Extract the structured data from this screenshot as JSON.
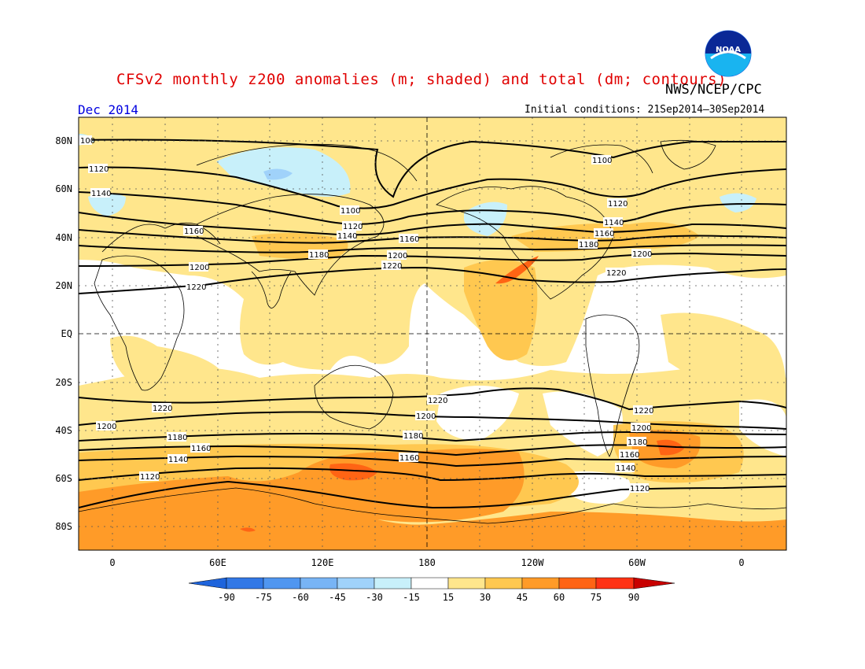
{
  "header": {
    "title": "CFSv2 monthly z200 anomalies (m; shaded) and total (dm; contours)",
    "agency": "NWS/NCEP/CPC",
    "logo_text": "NOAA",
    "valid_month": "Dec 2014",
    "initial_conditions": "Initial conditions: 21Sep2014–30Sep2014"
  },
  "map": {
    "lat_labels": [
      "80N",
      "60N",
      "40N",
      "20N",
      "EQ",
      "20S",
      "40S",
      "60S",
      "80S"
    ],
    "lon_labels": [
      "0",
      "60E",
      "120E",
      "180",
      "120W",
      "60W",
      "0"
    ],
    "contour_labels": [
      "100",
      "1100",
      "1120",
      "1140",
      "1160",
      "1180",
      "1200",
      "1220"
    ],
    "grid": true
  },
  "colorbar": {
    "ticks": [
      "-90",
      "-75",
      "-60",
      "-45",
      "-30",
      "-15",
      "15",
      "30",
      "45",
      "60",
      "75",
      "90"
    ],
    "colors": [
      "#1e64dc",
      "#3278e6",
      "#5096f0",
      "#78b4f5",
      "#a0d2fa",
      "#c8f0fa",
      "#ffffff",
      "#ffe68c",
      "#ffc850",
      "#ff9b28",
      "#ff6414",
      "#ff3214",
      "#c80000"
    ]
  }
}
